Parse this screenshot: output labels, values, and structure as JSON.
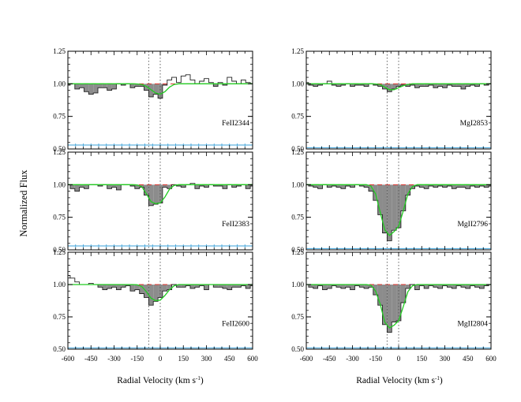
{
  "figure": {
    "ylabel": "Normalized Flux",
    "xlabel_left": "Radial Velocity (km s",
    "xlabel_right": "Radial Velocity (km s",
    "xlabel_sup": "-1",
    "xlabel_close": ")"
  },
  "colors": {
    "data": "#222222",
    "absorption_fill": "#8c8c8c",
    "model": "#22cc22",
    "continuum": "#e0302a",
    "zero_level": "#3aa0d8",
    "marker": "#555555"
  },
  "chart_data": [
    {
      "type": "line",
      "panel": "left-top",
      "label": "FeII2344",
      "xlim": [
        -600,
        600
      ],
      "ylim": [
        0.5,
        1.25
      ],
      "yticks": [
        "1.25",
        "1.00",
        "0.75",
        "0.50"
      ],
      "xticks": [],
      "velocity": [
        -600,
        -570,
        -540,
        -510,
        -480,
        -450,
        -420,
        -390,
        -360,
        -330,
        -300,
        -270,
        -240,
        -210,
        -180,
        -150,
        -120,
        -90,
        -60,
        -30,
        0,
        30,
        60,
        90,
        120,
        150,
        180,
        210,
        240,
        270,
        300,
        330,
        360,
        390,
        420,
        450,
        480,
        510,
        540,
        570,
        600
      ],
      "flux": [
        0.99,
        1.0,
        0.96,
        0.97,
        0.94,
        0.92,
        0.93,
        0.97,
        0.97,
        0.95,
        0.96,
        1.0,
        0.99,
        1.0,
        0.97,
        0.98,
        0.98,
        0.95,
        0.9,
        0.92,
        0.89,
        0.99,
        1.03,
        1.05,
        1.01,
        1.06,
        1.07,
        1.03,
        1.0,
        1.02,
        1.04,
        1.01,
        0.98,
        1.01,
        0.99,
        1.05,
        1.02,
        1.0,
        1.03,
        1.01,
        1.0
      ],
      "model": [
        1.0,
        1.0,
        1.0,
        1.0,
        1.0,
        1.0,
        1.0,
        1.0,
        1.0,
        1.0,
        1.0,
        1.0,
        1.0,
        1.0,
        1.0,
        0.999,
        0.995,
        0.98,
        0.955,
        0.93,
        0.92,
        0.94,
        0.975,
        0.995,
        1.0,
        1.0,
        1.0,
        1.0,
        1.0,
        1.0,
        1.0,
        1.0,
        1.0,
        1.0,
        1.0,
        1.0,
        1.0,
        1.0,
        1.0,
        1.0,
        1.0
      ],
      "zero_level": 0.53,
      "components": [
        -75,
        0
      ]
    },
    {
      "type": "line",
      "panel": "left-middle",
      "label": "FeII2383",
      "xlim": [
        -600,
        600
      ],
      "ylim": [
        0.5,
        1.25
      ],
      "yticks": [
        "1.25",
        "1.00",
        "0.75",
        "0.50"
      ],
      "xticks": [],
      "velocity": [
        -600,
        -570,
        -540,
        -510,
        -480,
        -450,
        -420,
        -390,
        -360,
        -330,
        -300,
        -270,
        -240,
        -210,
        -180,
        -150,
        -120,
        -90,
        -60,
        -30,
        0,
        30,
        60,
        90,
        120,
        150,
        180,
        210,
        240,
        270,
        300,
        330,
        360,
        390,
        420,
        450,
        480,
        510,
        540,
        570,
        600
      ],
      "flux": [
        1.0,
        0.97,
        0.95,
        0.98,
        0.97,
        1.0,
        1.0,
        0.99,
        1.0,
        0.97,
        0.98,
        0.96,
        1.0,
        1.0,
        0.99,
        0.97,
        0.98,
        0.92,
        0.84,
        0.85,
        0.86,
        0.98,
        0.97,
        1.0,
        0.99,
        0.98,
        1.0,
        1.01,
        0.97,
        0.99,
        0.98,
        1.0,
        0.99,
        0.99,
        0.97,
        1.0,
        0.98,
        0.99,
        1.0,
        0.97,
        0.99
      ],
      "model": [
        1.0,
        1.0,
        1.0,
        1.0,
        1.0,
        1.0,
        1.0,
        1.0,
        1.0,
        1.0,
        1.0,
        1.0,
        1.0,
        1.0,
        1.0,
        0.998,
        0.985,
        0.93,
        0.87,
        0.855,
        0.86,
        0.905,
        0.965,
        0.995,
        1.0,
        1.0,
        1.0,
        1.0,
        1.0,
        1.0,
        1.0,
        1.0,
        1.0,
        1.0,
        1.0,
        1.0,
        1.0,
        1.0,
        1.0,
        1.0,
        1.0
      ],
      "zero_level": 0.53,
      "components": [
        -75,
        0
      ]
    },
    {
      "type": "line",
      "panel": "left-bottom",
      "label": "FeII2600",
      "xlim": [
        -600,
        600
      ],
      "ylim": [
        0.5,
        1.25
      ],
      "yticks": [
        "1.25",
        "1.00",
        "0.75",
        "0.50"
      ],
      "xticks": [
        "-600",
        "-450",
        "-300",
        "-150",
        "0",
        "150",
        "300",
        "450",
        "600"
      ],
      "velocity": [
        -600,
        -570,
        -540,
        -510,
        -480,
        -450,
        -420,
        -390,
        -360,
        -330,
        -300,
        -270,
        -240,
        -210,
        -180,
        -150,
        -120,
        -90,
        -60,
        -30,
        0,
        30,
        60,
        90,
        120,
        150,
        180,
        210,
        240,
        270,
        300,
        330,
        360,
        390,
        420,
        450,
        480,
        510,
        540,
        570,
        600
      ],
      "flux": [
        1.07,
        1.05,
        1.02,
        1.0,
        1.0,
        1.01,
        1.0,
        0.98,
        0.96,
        0.97,
        0.98,
        0.96,
        0.98,
        0.99,
        0.95,
        0.96,
        0.93,
        0.9,
        0.84,
        0.87,
        0.9,
        0.95,
        0.96,
        1.0,
        0.98,
        0.98,
        0.99,
        0.97,
        0.98,
        0.99,
        0.96,
        1.0,
        0.98,
        0.98,
        0.97,
        0.96,
        0.98,
        0.98,
        0.99,
        0.97,
        0.99
      ],
      "model": [
        1.0,
        1.0,
        1.0,
        1.0,
        1.0,
        1.0,
        1.0,
        1.0,
        1.0,
        1.0,
        1.0,
        1.0,
        1.0,
        1.0,
        1.0,
        0.998,
        0.985,
        0.945,
        0.895,
        0.875,
        0.88,
        0.915,
        0.96,
        0.99,
        1.0,
        1.0,
        1.0,
        1.0,
        1.0,
        1.0,
        1.0,
        1.0,
        1.0,
        1.0,
        1.0,
        1.0,
        1.0,
        1.0,
        1.0,
        1.0,
        1.0
      ],
      "zero_level": 0.51,
      "components": [
        -75,
        0
      ]
    },
    {
      "type": "line",
      "panel": "right-top",
      "label": "MgI2853",
      "xlim": [
        -600,
        600
      ],
      "ylim": [
        0.5,
        1.25
      ],
      "yticks": [
        "1.25",
        "1.00",
        "0.75",
        "0.50"
      ],
      "xticks": [],
      "velocity": [
        -600,
        -570,
        -540,
        -510,
        -480,
        -450,
        -420,
        -390,
        -360,
        -330,
        -300,
        -270,
        -240,
        -210,
        -180,
        -150,
        -120,
        -90,
        -60,
        -30,
        0,
        30,
        60,
        90,
        120,
        150,
        180,
        210,
        240,
        270,
        300,
        330,
        360,
        390,
        420,
        450,
        480,
        510,
        540,
        570,
        600
      ],
      "flux": [
        1.01,
        0.99,
        0.98,
        0.99,
        1.0,
        1.02,
        0.99,
        0.98,
        0.99,
        1.0,
        0.98,
        0.99,
        0.99,
        0.98,
        1.0,
        0.99,
        0.98,
        0.96,
        0.94,
        0.96,
        0.98,
        0.99,
        0.98,
        0.99,
        0.97,
        0.98,
        0.98,
        0.99,
        0.97,
        0.98,
        0.97,
        0.99,
        0.98,
        0.98,
        0.96,
        0.98,
        0.99,
        0.98,
        1.0,
        0.99,
        1.0
      ],
      "model": [
        1.0,
        1.0,
        1.0,
        1.0,
        1.0,
        1.0,
        1.0,
        1.0,
        1.0,
        1.0,
        1.0,
        1.0,
        1.0,
        1.0,
        1.0,
        0.999,
        0.995,
        0.975,
        0.955,
        0.955,
        0.97,
        0.985,
        0.995,
        1.0,
        1.0,
        1.0,
        1.0,
        1.0,
        1.0,
        1.0,
        1.0,
        1.0,
        1.0,
        1.0,
        1.0,
        1.0,
        1.0,
        1.0,
        1.0,
        1.0,
        1.0
      ],
      "zero_level": 0.51,
      "components": [
        -75,
        0
      ]
    },
    {
      "type": "line",
      "panel": "right-middle",
      "label": "MgII2796",
      "xlim": [
        -600,
        600
      ],
      "ylim": [
        0.5,
        1.25
      ],
      "yticks": [
        "1.25",
        "1.00",
        "0.75",
        "0.50"
      ],
      "xticks": [],
      "velocity": [
        -600,
        -570,
        -540,
        -510,
        -480,
        -450,
        -420,
        -390,
        -360,
        -330,
        -300,
        -270,
        -240,
        -210,
        -180,
        -150,
        -120,
        -90,
        -60,
        -30,
        0,
        30,
        60,
        90,
        120,
        150,
        180,
        210,
        240,
        270,
        300,
        330,
        360,
        390,
        420,
        450,
        480,
        510,
        540,
        570,
        600
      ],
      "flux": [
        1.0,
        0.99,
        0.98,
        0.97,
        1.0,
        0.98,
        0.99,
        0.98,
        0.97,
        0.99,
        0.98,
        1.0,
        0.99,
        0.98,
        0.95,
        0.88,
        0.77,
        0.63,
        0.57,
        0.65,
        0.67,
        0.8,
        0.92,
        0.97,
        0.99,
        0.98,
        0.97,
        0.99,
        0.98,
        0.99,
        0.98,
        0.99,
        0.97,
        0.98,
        0.98,
        0.97,
        0.99,
        0.98,
        0.99,
        0.98,
        0.99
      ],
      "model": [
        1.0,
        1.0,
        1.0,
        1.0,
        1.0,
        1.0,
        1.0,
        1.0,
        1.0,
        1.0,
        1.0,
        1.0,
        1.0,
        1.0,
        0.99,
        0.93,
        0.79,
        0.655,
        0.61,
        0.64,
        0.68,
        0.8,
        0.93,
        0.985,
        1.0,
        1.0,
        1.0,
        1.0,
        1.0,
        1.0,
        1.0,
        1.0,
        1.0,
        1.0,
        1.0,
        1.0,
        1.0,
        1.0,
        1.0,
        1.0,
        1.0
      ],
      "zero_level": 0.51,
      "components": [
        -75,
        0
      ]
    },
    {
      "type": "line",
      "panel": "right-bottom",
      "label": "MgII2804",
      "xlim": [
        -600,
        600
      ],
      "ylim": [
        0.5,
        1.25
      ],
      "yticks": [
        "1.25",
        "1.00",
        "0.75",
        "0.50"
      ],
      "xticks": [
        "-600",
        "-450",
        "-300",
        "-150",
        "0",
        "150",
        "300",
        "450",
        "600"
      ],
      "velocity": [
        -600,
        -570,
        -540,
        -510,
        -480,
        -450,
        -420,
        -390,
        -360,
        -330,
        -300,
        -270,
        -240,
        -210,
        -180,
        -150,
        -120,
        -90,
        -60,
        -30,
        0,
        30,
        60,
        90,
        120,
        150,
        180,
        210,
        240,
        270,
        300,
        330,
        360,
        390,
        420,
        450,
        480,
        510,
        540,
        570,
        600
      ],
      "flux": [
        1.0,
        0.98,
        0.97,
        0.99,
        0.96,
        0.97,
        0.99,
        0.98,
        0.97,
        0.98,
        0.96,
        0.99,
        0.98,
        0.97,
        0.98,
        0.92,
        0.84,
        0.69,
        0.63,
        0.71,
        0.72,
        0.86,
        0.97,
        1.0,
        0.96,
        0.99,
        0.97,
        0.99,
        0.98,
        0.97,
        0.99,
        0.98,
        0.97,
        0.99,
        0.98,
        0.97,
        0.99,
        0.98,
        0.97,
        0.99,
        1.0
      ],
      "model": [
        1.0,
        1.0,
        1.0,
        1.0,
        1.0,
        1.0,
        1.0,
        1.0,
        1.0,
        1.0,
        1.0,
        1.0,
        1.0,
        1.0,
        0.995,
        0.95,
        0.85,
        0.71,
        0.665,
        0.685,
        0.72,
        0.83,
        0.945,
        0.99,
        1.0,
        1.0,
        1.0,
        1.0,
        1.0,
        1.0,
        1.0,
        1.0,
        1.0,
        1.0,
        1.0,
        1.0,
        1.0,
        1.0,
        1.0,
        1.0,
        1.0
      ],
      "zero_level": 0.51,
      "components": [
        -75,
        0
      ]
    }
  ]
}
